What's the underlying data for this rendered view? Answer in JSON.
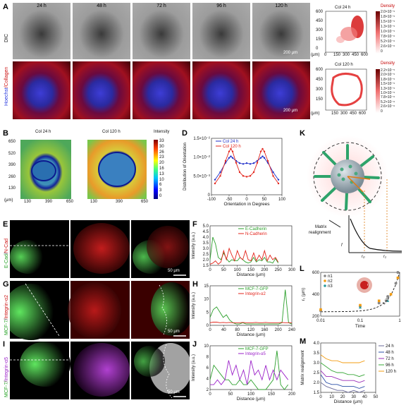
{
  "panels": {
    "A": {
      "label": "A",
      "times": [
        "24 h",
        "48 h",
        "72 h",
        "96 h",
        "120 h"
      ],
      "row1_label": "DIC",
      "row2_label_a": "Hoechst",
      "row2_label_b": "Collagen",
      "scale_bar_text": "200 μm"
    },
    "B": {
      "label": "B",
      "left_title": "Col 24 h",
      "right_title": "Col 120 h",
      "y_ticks": [
        "650",
        "520",
        "390",
        "260",
        "130"
      ],
      "y_unit": "(μm)",
      "x_ticks": [
        "130",
        "390",
        "650"
      ],
      "colorbar_title": "Intensity",
      "colorbar_ticks": [
        "33",
        "30",
        "26",
        "23",
        "20",
        "16",
        "13",
        "10",
        "6",
        "3",
        "0"
      ]
    },
    "C": {
      "label": "C",
      "top_title": "Col 24 h",
      "bottom_title": "Col 120 h",
      "density_label": "Density",
      "y_ticks_top": [
        "600",
        "450",
        "300",
        "150",
        "0"
      ],
      "y_ticks_bottom": [
        "600",
        "450",
        "300",
        "150"
      ],
      "y_unit": "(μm)",
      "x_ticks": [
        "0",
        "150",
        "300",
        "450",
        "600"
      ],
      "x_ticks_bottom": [
        "150",
        "300",
        "450",
        "600"
      ],
      "colorbar_ticks_top": [
        "2.0×10⁻⁵",
        "1.8×10⁻⁵",
        "1.5×10⁻⁵",
        "1.3×10⁻⁵",
        "1.0×10⁻⁵",
        "7.8×10⁻⁶",
        "5.2×10⁻⁶",
        "2.6×10⁻⁶",
        "0"
      ],
      "colorbar_ticks_bottom": [
        "2.2×10⁻⁵",
        "2.0×10⁻⁵",
        "1.8×10⁻⁵",
        "1.5×10⁻⁵",
        "1.3×10⁻⁵",
        "1.0×10⁻⁵",
        "7.8×10⁻⁶",
        "5.2×10⁻⁶",
        "2.6×10⁻⁶",
        "0"
      ]
    },
    "D": {
      "label": "D",
      "xlabel": "Orientation in Degrees",
      "ylabel": "Distribution of Orientation",
      "x_ticks": [
        "-100",
        "-50",
        "0",
        "50",
        "100"
      ],
      "y_ticks": [
        "1.5×10⁻²",
        "1.0×10⁻²",
        "5.0×10⁻³",
        "0"
      ],
      "legend": [
        "Col 24 h",
        "Col 120 h"
      ]
    },
    "E": {
      "label": "E",
      "side_a": "E-Cad",
      "side_b": "N-Cad",
      "scale_bar_text": "50 μm"
    },
    "F": {
      "label": "F",
      "ylabel": "Intensity (a.u.)",
      "xlabel": "Distance (μm)",
      "x_ticks": [
        "0",
        "50",
        "100",
        "150",
        "200",
        "250",
        "300"
      ],
      "y_ticks": [
        "5.0",
        "4.5",
        "4.0",
        "3.5",
        "3.0",
        "2.5",
        "2.0",
        "1.5"
      ],
      "legend": [
        "E-Cadherin",
        "N-Cadherin"
      ]
    },
    "G": {
      "label": "G",
      "side_a": "MCF-7",
      "side_b": "Integrin-α2",
      "scale_bar_text": "50 μm"
    },
    "H": {
      "label": "H",
      "ylabel": "Intensity (a.u.)",
      "xlabel": "Distance (μm)",
      "x_ticks": [
        "0",
        "40",
        "80",
        "120",
        "160",
        "200",
        "240"
      ],
      "y_ticks": [
        "15",
        "10",
        "5",
        "0"
      ],
      "legend": [
        "MCF-7-GFP",
        "Integrin-α2"
      ]
    },
    "I": {
      "label": "I",
      "side_a": "MCF-7",
      "side_b": "Integrin-α5",
      "scale_bar_text": "50 μm"
    },
    "J": {
      "label": "J",
      "ylabel": "Intensity (a.u.)",
      "xlabel": "Distance (μm)",
      "x_ticks": [
        "0",
        "50",
        "100",
        "150",
        "200"
      ],
      "y_ticks": [
        "10",
        "8",
        "6",
        "4",
        "2"
      ],
      "legend": [
        "MCF-7-GFP",
        "Integrin-α5"
      ]
    },
    "K": {
      "label": "K",
      "caption_line1": "Matrix",
      "caption_line2": "realignment",
      "axis_y": "f",
      "axis_x1": "r₀",
      "axis_x2": "r₁"
    },
    "L": {
      "label": "L",
      "ylabel": "r₁ (μm)",
      "xlabel": "Time",
      "y_ticks": [
        "600",
        "400",
        "200"
      ],
      "x_ticks": [
        "0.01",
        "0.1",
        "1"
      ],
      "legend": [
        "n1",
        "n2",
        "n3"
      ],
      "slope_text": "1.65",
      "inset_text": "r₁"
    },
    "M": {
      "label": "M",
      "ylabel": "Matrix realignment",
      "xlabel": "Distance (μm)",
      "x_ticks": [
        "0",
        "10",
        "20",
        "30",
        "40",
        "50"
      ],
      "y_ticks": [
        "4.0",
        "3.5",
        "3.0",
        "2.5",
        "2.0",
        "1.5"
      ],
      "legend": [
        "24 h",
        "48 h",
        "72 h",
        "96 h",
        "120 h"
      ]
    }
  },
  "colors": {
    "green": "#2ca02c",
    "red": "#e3241b",
    "blue": "#1f2ec9",
    "purple": "#9a1fc8",
    "orange": "#f39c12",
    "gray": "#888888",
    "teal": "#2a9aa0",
    "darkred": "#b40000"
  },
  "chart_data": [
    {
      "type": "line",
      "panel": "D",
      "x": [
        -90,
        -75,
        -60,
        -50,
        -45,
        -40,
        -30,
        -20,
        -10,
        0,
        10,
        20,
        30,
        40,
        45,
        50,
        60,
        75,
        90
      ],
      "series": [
        {
          "name": "Col 24 h",
          "values": [
            0.004,
            0.006,
            0.0085,
            0.0098,
            0.0102,
            0.0098,
            0.009,
            0.0084,
            0.0082,
            0.0084,
            0.0082,
            0.0084,
            0.009,
            0.0098,
            0.0102,
            0.0098,
            0.0085,
            0.006,
            0.004
          ]
        },
        {
          "name": "Col 120 h",
          "values": [
            0.003,
            0.005,
            0.009,
            0.0115,
            0.0122,
            0.0115,
            0.0085,
            0.006,
            0.005,
            0.0048,
            0.005,
            0.006,
            0.0085,
            0.0115,
            0.0122,
            0.0115,
            0.009,
            0.005,
            0.003
          ]
        }
      ],
      "xlabel": "Orientation in Degrees",
      "ylabel": "Distribution of Orientation",
      "xlim": [
        -100,
        100
      ],
      "ylim": [
        0,
        0.015
      ]
    },
    {
      "type": "line",
      "panel": "F",
      "x": [
        0,
        10,
        20,
        30,
        40,
        50,
        60,
        70,
        80,
        90,
        100,
        110,
        120,
        130,
        140,
        150,
        160,
        170,
        180,
        190,
        200,
        210,
        220,
        230,
        240,
        250
      ],
      "series": [
        {
          "name": "E-Cadherin",
          "values": [
            2.0,
            4.0,
            3.4,
            2.2,
            2.0,
            2.6,
            2.1,
            1.8,
            2.0,
            1.9,
            1.9,
            2.2,
            2.0,
            1.8,
            1.7,
            1.8,
            2.2,
            1.8,
            2.0,
            1.9,
            2.2,
            1.8,
            1.8,
            1.7,
            2.1,
            1.7
          ]
        },
        {
          "name": "N-Cadherin",
          "values": [
            1.6,
            1.7,
            1.9,
            1.6,
            1.8,
            2.8,
            2.0,
            3.0,
            2.4,
            1.9,
            2.8,
            2.2,
            2.0,
            2.8,
            2.0,
            1.9,
            2.6,
            1.9,
            2.4,
            2.0,
            2.8,
            1.9,
            2.4,
            2.0,
            2.2,
            1.8
          ]
        }
      ],
      "xlabel": "Distance (μm)",
      "ylabel": "Intensity (a.u.)",
      "xlim": [
        0,
        300
      ],
      "ylim": [
        1.5,
        5.0
      ]
    },
    {
      "type": "line",
      "panel": "H",
      "x": [
        0,
        10,
        20,
        30,
        40,
        50,
        60,
        70,
        80,
        90,
        100,
        110,
        120,
        130,
        140,
        150,
        160,
        170,
        180,
        190,
        200,
        210,
        220,
        230,
        240,
        250
      ],
      "series": [
        {
          "name": "MCF-7-GFP",
          "values": [
            3,
            6,
            7,
            5,
            3,
            4,
            2,
            1,
            0.5,
            0.5,
            1,
            0.5,
            0.5,
            0.5,
            0.5,
            0.5,
            0.5,
            0.5,
            0.5,
            0.5,
            0.5,
            0.5,
            1,
            13.5,
            1,
            0.5
          ]
        },
        {
          "name": "Integrin-α2",
          "values": [
            1.0,
            1.2,
            1.2,
            1.0,
            1.1,
            1.0,
            1.1,
            1.0,
            1.0,
            1.0,
            1.1,
            1.0,
            1.0,
            1.0,
            1.1,
            1.0,
            1.0,
            1.1,
            1.0,
            1.0,
            1.0,
            1.0,
            1.1,
            1.0,
            1.0,
            1.0
          ]
        }
      ],
      "xlabel": "Distance (μm)",
      "ylabel": "Intensity (a.u.)",
      "xlim": [
        0,
        250
      ],
      "ylim": [
        0,
        15
      ]
    },
    {
      "type": "line",
      "panel": "J",
      "x": [
        0,
        10,
        20,
        30,
        40,
        50,
        60,
        70,
        80,
        90,
        100,
        110,
        120,
        130,
        140,
        150,
        160,
        170,
        180,
        190,
        200,
        210
      ],
      "series": [
        {
          "name": "MCF-7-GFP",
          "values": [
            4,
            7,
            6,
            5,
            4,
            4,
            3,
            3,
            4,
            3,
            3,
            4,
            3,
            2,
            2,
            2,
            3,
            4,
            10,
            3,
            2,
            3
          ]
        },
        {
          "name": "Integrin-α5",
          "values": [
            3,
            3,
            4,
            3,
            4,
            8,
            5,
            7,
            4,
            6,
            3,
            8,
            5,
            6,
            4,
            7,
            4,
            6,
            4,
            6,
            5,
            4
          ]
        }
      ],
      "xlabel": "Distance (μm)",
      "ylabel": "Intensity (a.u.)",
      "xlim": [
        0,
        220
      ],
      "ylim": [
        2,
        11
      ]
    },
    {
      "type": "scatter",
      "panel": "L",
      "series": [
        {
          "name": "n1",
          "x": [
            0.01,
            0.1,
            0.3,
            0.5,
            0.8,
            0.9
          ],
          "y": [
            250,
            290,
            320,
            380,
            500,
            600
          ]
        },
        {
          "name": "n2",
          "x": [
            0.01,
            0.1,
            0.3,
            0.6,
            0.9
          ],
          "y": [
            260,
            300,
            340,
            400,
            550
          ]
        },
        {
          "name": "n3",
          "x": [
            0.1,
            0.5
          ],
          "y": [
            280,
            340
          ]
        }
      ],
      "xlabel": "Time",
      "ylabel": "r₁ (μm)",
      "xscale": "log",
      "xlim": [
        0.01,
        1
      ],
      "ylim": [
        200,
        600
      ]
    },
    {
      "type": "line",
      "panel": "M",
      "x": [
        0,
        5,
        10,
        15,
        20,
        25,
        30,
        35,
        40
      ],
      "series": [
        {
          "name": "24 h",
          "values": [
            2.0,
            1.8,
            1.7,
            1.6,
            1.6,
            1.5,
            1.6,
            1.5,
            1.6
          ]
        },
        {
          "name": "48 h",
          "values": [
            2.4,
            2.0,
            1.9,
            1.9,
            1.8,
            1.8,
            1.8,
            1.7,
            1.8
          ]
        },
        {
          "name": "72 h",
          "values": [
            2.6,
            2.3,
            2.3,
            2.2,
            2.1,
            2.1,
            2.1,
            2.0,
            2.1
          ]
        },
        {
          "name": "96 h",
          "values": [
            3.0,
            2.8,
            2.6,
            2.5,
            2.5,
            2.4,
            2.4,
            2.3,
            2.4
          ]
        },
        {
          "name": "120 h",
          "values": [
            3.4,
            3.2,
            3.1,
            3.1,
            3.0,
            3.0,
            3.0,
            3.0,
            3.1
          ]
        }
      ],
      "xlabel": "Distance (μm)",
      "ylabel": "Matrix realignment",
      "xlim": [
        0,
        50
      ],
      "ylim": [
        1.5,
        4.0
      ]
    }
  ]
}
